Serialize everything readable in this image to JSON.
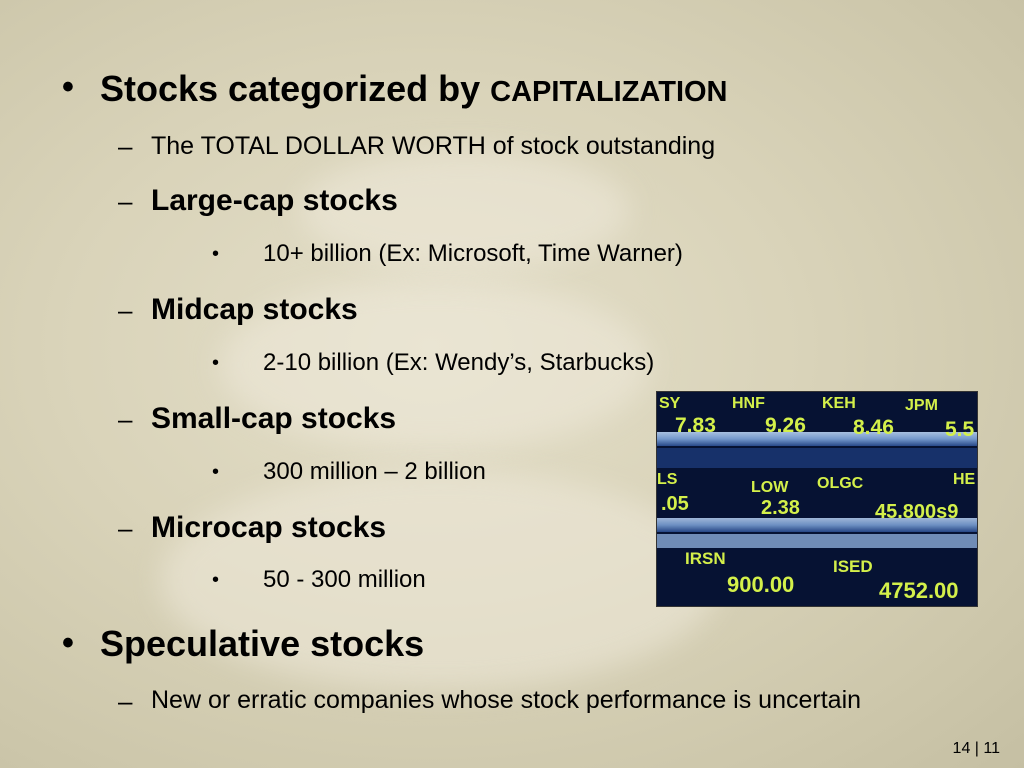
{
  "slide": {
    "bullet_1": {
      "label": "Stocks categorized by",
      "emphasis": "CAPITALIZATION"
    },
    "definition": "The TOTAL DOLLAR WORTH of stock outstanding",
    "large_cap": {
      "label": "Large-cap stocks",
      "detail": "10+ billion (Ex: Microsoft, Time Warner)"
    },
    "midcap": {
      "label": "Midcap stocks",
      "detail": "2-10 billion (Ex: Wendy’s, Starbucks)"
    },
    "small_cap": {
      "label": "Small-cap stocks",
      "detail": "300 million – 2 billion"
    },
    "microcap": {
      "label": "Microcap stocks",
      "detail": "50 - 300 million"
    },
    "bullet_2": {
      "label": "Speculative stocks",
      "detail": "New or erratic companies whose stock performance is uncertain"
    },
    "page_number": "14 | 11"
  },
  "ticker_image": {
    "rows": [
      [
        "SY",
        "HNF",
        "KEH",
        "JPM"
      ],
      [
        "7.83",
        "9.26",
        "8.46",
        "5.5"
      ],
      [
        "LS",
        "LOW",
        "OLGC",
        "HE"
      ],
      [
        ".05",
        "2.38",
        "45.800s9"
      ],
      [
        "IRSN",
        "ISED"
      ],
      [
        "900.00",
        "4752.00"
      ]
    ],
    "colors": {
      "text": "#d4f04a",
      "background": "#061233",
      "band": "#8fb6e8"
    }
  }
}
